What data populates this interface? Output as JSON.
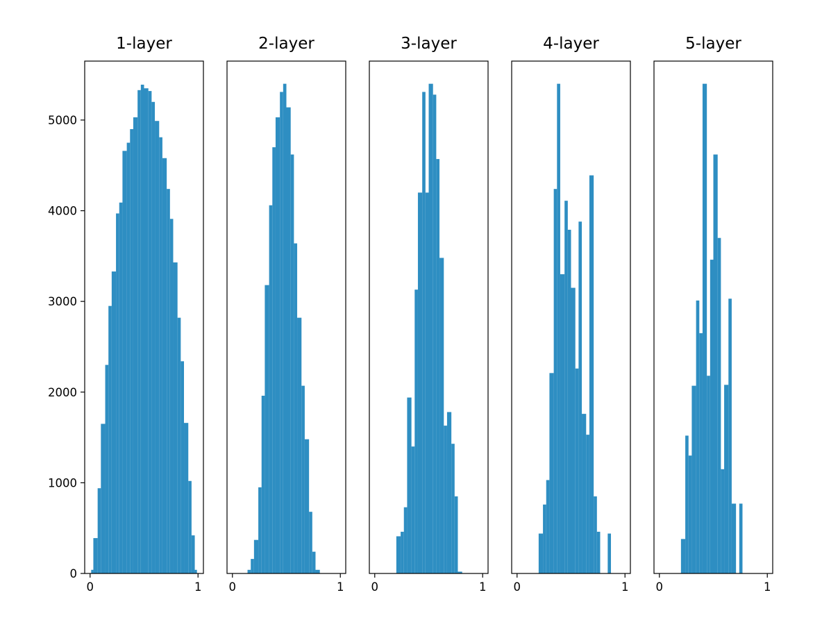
{
  "colors": {
    "bar": "#2E8EC2",
    "axes": "#000000",
    "background": "#FFFFFF"
  },
  "chart_data": [
    {
      "type": "bar",
      "title": "1-layer",
      "xlim": [
        -0.05,
        1.05
      ],
      "ylim": [
        0,
        5650
      ],
      "xticks": [
        {
          "value": 0,
          "label": "0"
        },
        {
          "value": 1,
          "label": "1"
        }
      ],
      "yticks": [
        {
          "value": 0,
          "label": "0"
        },
        {
          "value": 1000,
          "label": "1000"
        },
        {
          "value": 2000,
          "label": "2000"
        },
        {
          "value": 3000,
          "label": "3000"
        },
        {
          "value": 4000,
          "label": "4000"
        },
        {
          "value": 5000,
          "label": "5000"
        }
      ],
      "bins": [
        [
          0.01,
          0.03,
          40
        ],
        [
          0.03,
          0.07,
          390
        ],
        [
          0.07,
          0.1,
          940
        ],
        [
          0.1,
          0.14,
          1650
        ],
        [
          0.14,
          0.17,
          2300
        ],
        [
          0.17,
          0.2,
          2950
        ],
        [
          0.2,
          0.24,
          3330
        ],
        [
          0.24,
          0.27,
          3970
        ],
        [
          0.27,
          0.3,
          4090
        ],
        [
          0.3,
          0.34,
          4660
        ],
        [
          0.34,
          0.37,
          4750
        ],
        [
          0.37,
          0.4,
          4900
        ],
        [
          0.4,
          0.44,
          5030
        ],
        [
          0.44,
          0.47,
          5330
        ],
        [
          0.47,
          0.5,
          5390
        ],
        [
          0.5,
          0.54,
          5350
        ],
        [
          0.54,
          0.57,
          5320
        ],
        [
          0.57,
          0.6,
          5200
        ],
        [
          0.6,
          0.64,
          4990
        ],
        [
          0.64,
          0.67,
          4810
        ],
        [
          0.67,
          0.71,
          4580
        ],
        [
          0.71,
          0.74,
          4240
        ],
        [
          0.74,
          0.77,
          3910
        ],
        [
          0.77,
          0.81,
          3430
        ],
        [
          0.81,
          0.84,
          2820
        ],
        [
          0.84,
          0.87,
          2340
        ],
        [
          0.87,
          0.91,
          1660
        ],
        [
          0.91,
          0.94,
          1020
        ],
        [
          0.94,
          0.97,
          420
        ],
        [
          0.97,
          0.99,
          40
        ]
      ]
    },
    {
      "type": "bar",
      "title": "2-layer",
      "xlim": [
        -0.05,
        1.05
      ],
      "ylim": [
        0,
        5650
      ],
      "xticks": [
        {
          "value": 0,
          "label": "0"
        },
        {
          "value": 1,
          "label": "1"
        }
      ],
      "yticks": [],
      "bins": [
        [
          0.14,
          0.17,
          40
        ],
        [
          0.17,
          0.2,
          160
        ],
        [
          0.2,
          0.24,
          370
        ],
        [
          0.24,
          0.27,
          950
        ],
        [
          0.27,
          0.3,
          1960
        ],
        [
          0.3,
          0.34,
          3180
        ],
        [
          0.34,
          0.37,
          4060
        ],
        [
          0.37,
          0.4,
          4700
        ],
        [
          0.4,
          0.44,
          5030
        ],
        [
          0.44,
          0.47,
          5310
        ],
        [
          0.47,
          0.5,
          5400
        ],
        [
          0.5,
          0.54,
          5140
        ],
        [
          0.54,
          0.57,
          4620
        ],
        [
          0.57,
          0.6,
          3640
        ],
        [
          0.6,
          0.64,
          2820
        ],
        [
          0.64,
          0.67,
          2070
        ],
        [
          0.67,
          0.71,
          1480
        ],
        [
          0.71,
          0.74,
          680
        ],
        [
          0.74,
          0.77,
          240
        ],
        [
          0.77,
          0.81,
          40
        ]
      ]
    },
    {
      "type": "bar",
      "title": "3-layer",
      "xlim": [
        -0.05,
        1.05
      ],
      "ylim": [
        0,
        5650
      ],
      "xticks": [
        {
          "value": 0,
          "label": "0"
        },
        {
          "value": 1,
          "label": "1"
        }
      ],
      "yticks": [],
      "bins": [
        [
          0.2,
          0.24,
          410
        ],
        [
          0.24,
          0.27,
          460
        ],
        [
          0.27,
          0.3,
          730
        ],
        [
          0.3,
          0.34,
          1940
        ],
        [
          0.34,
          0.37,
          1400
        ],
        [
          0.37,
          0.4,
          3130
        ],
        [
          0.4,
          0.44,
          4200
        ],
        [
          0.44,
          0.47,
          5310
        ],
        [
          0.47,
          0.5,
          4200
        ],
        [
          0.5,
          0.54,
          5400
        ],
        [
          0.54,
          0.57,
          5280
        ],
        [
          0.57,
          0.6,
          4570
        ],
        [
          0.6,
          0.64,
          3480
        ],
        [
          0.64,
          0.67,
          1630
        ],
        [
          0.67,
          0.71,
          1780
        ],
        [
          0.71,
          0.74,
          1430
        ],
        [
          0.74,
          0.77,
          850
        ],
        [
          0.77,
          0.81,
          20
        ]
      ]
    },
    {
      "type": "bar",
      "title": "4-layer",
      "xlim": [
        -0.05,
        1.05
      ],
      "ylim": [
        0,
        5650
      ],
      "xticks": [
        {
          "value": 0,
          "label": "0"
        },
        {
          "value": 1,
          "label": "1"
        }
      ],
      "yticks": [],
      "bins": [
        [
          0.2,
          0.24,
          440
        ],
        [
          0.24,
          0.27,
          760
        ],
        [
          0.27,
          0.3,
          1030
        ],
        [
          0.3,
          0.34,
          2210
        ],
        [
          0.34,
          0.37,
          4240
        ],
        [
          0.37,
          0.4,
          5400
        ],
        [
          0.4,
          0.44,
          3300
        ],
        [
          0.44,
          0.47,
          4110
        ],
        [
          0.47,
          0.5,
          3790
        ],
        [
          0.5,
          0.54,
          3150
        ],
        [
          0.54,
          0.57,
          2260
        ],
        [
          0.57,
          0.6,
          3880
        ],
        [
          0.6,
          0.64,
          1760
        ],
        [
          0.64,
          0.67,
          1530
        ],
        [
          0.67,
          0.71,
          4390
        ],
        [
          0.71,
          0.74,
          850
        ],
        [
          0.74,
          0.77,
          460
        ],
        [
          0.84,
          0.87,
          440
        ]
      ]
    },
    {
      "type": "bar",
      "title": "5-layer",
      "xlim": [
        -0.05,
        1.05
      ],
      "ylim": [
        0,
        5650
      ],
      "xticks": [
        {
          "value": 0,
          "label": "0"
        },
        {
          "value": 1,
          "label": "1"
        }
      ],
      "yticks": [],
      "bins": [
        [
          0.2,
          0.24,
          380
        ],
        [
          0.24,
          0.27,
          1520
        ],
        [
          0.27,
          0.3,
          1300
        ],
        [
          0.3,
          0.34,
          2070
        ],
        [
          0.34,
          0.37,
          3010
        ],
        [
          0.37,
          0.4,
          2650
        ],
        [
          0.4,
          0.44,
          5400
        ],
        [
          0.44,
          0.47,
          2180
        ],
        [
          0.47,
          0.5,
          3460
        ],
        [
          0.5,
          0.54,
          4620
        ],
        [
          0.54,
          0.57,
          3700
        ],
        [
          0.57,
          0.6,
          1150
        ],
        [
          0.6,
          0.64,
          2080
        ],
        [
          0.64,
          0.67,
          3030
        ],
        [
          0.67,
          0.71,
          770
        ],
        [
          0.74,
          0.77,
          770
        ]
      ]
    }
  ]
}
